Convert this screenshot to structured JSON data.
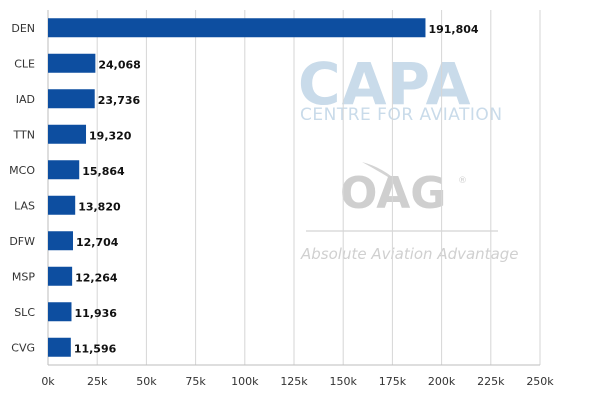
{
  "chart_data": {
    "type": "bar",
    "orientation": "horizontal",
    "categories": [
      "DEN",
      "CLE",
      "IAD",
      "TTN",
      "MCO",
      "LAS",
      "DFW",
      "MSP",
      "SLC",
      "CVG"
    ],
    "values": [
      191804,
      24068,
      23736,
      19320,
      15864,
      13820,
      12704,
      12264,
      11936,
      11596
    ],
    "value_labels": [
      "191,804",
      "24,068",
      "23,736",
      "19,320",
      "15,864",
      "13,820",
      "12,704",
      "12,264",
      "11,936",
      "11,596"
    ],
    "xlim": [
      0,
      250000
    ],
    "x_ticks": [
      0,
      25000,
      50000,
      75000,
      100000,
      125000,
      150000,
      175000,
      200000,
      225000,
      250000
    ],
    "x_tick_labels": [
      "0k",
      "25k",
      "50k",
      "75k",
      "100k",
      "125k",
      "150k",
      "175k",
      "200k",
      "225k",
      "250k"
    ],
    "grid": true,
    "bar_color": "#0d4ea0",
    "title": "",
    "xlabel": "",
    "ylabel": ""
  },
  "watermarks": {
    "capa_title": "CAPA",
    "capa_subtitle": "CENTRE FOR AVIATION",
    "oag_title": "OAG",
    "oag_registered": "®",
    "oag_subtitle": "Absolute Aviation Advantage"
  }
}
